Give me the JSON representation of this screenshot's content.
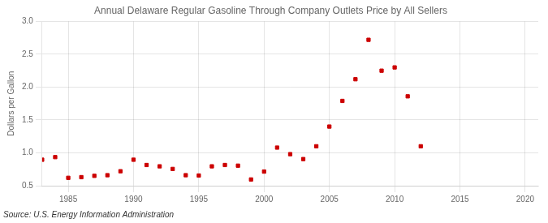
{
  "chart_data": {
    "type": "scatter",
    "title": "Annual Delaware Regular Gasoline Through Company Outlets Price by All Sellers",
    "ylabel": "Dollars per Gallon",
    "annotations": [
      "Source: U.S. Energy Information Administration"
    ],
    "x": [
      1983,
      1984,
      1985,
      1986,
      1987,
      1988,
      1989,
      1990,
      1991,
      1992,
      1993,
      1994,
      1995,
      1996,
      1997,
      1998,
      1999,
      2000,
      2001,
      2002,
      2003,
      2004,
      2005,
      2006,
      2007,
      2008,
      2009,
      2010,
      2011,
      2012
    ],
    "values": [
      0.895,
      0.935,
      0.62,
      0.63,
      0.65,
      0.66,
      0.72,
      0.895,
      0.815,
      0.795,
      0.755,
      0.66,
      0.655,
      0.795,
      0.815,
      0.805,
      0.595,
      0.715,
      1.08,
      0.98,
      0.905,
      1.1,
      1.4,
      1.79,
      2.12,
      2.72,
      2.25,
      2.3,
      1.86,
      1.1
    ],
    "color": "#cc0000",
    "marker": "square",
    "xlim": [
      1983,
      2021
    ],
    "ylim": [
      0.5,
      3.0
    ],
    "xticks": [
      1985,
      1990,
      1995,
      2000,
      2005,
      2010,
      2015,
      2020
    ],
    "yticks": [
      0.5,
      {
        "value": 1.0,
        "label": "1.0"
      },
      1.5,
      {
        "value": 2.0,
        "label": "2.0"
      },
      2.5,
      {
        "value": 3.0,
        "label": "3.0"
      }
    ],
    "grid": true
  }
}
